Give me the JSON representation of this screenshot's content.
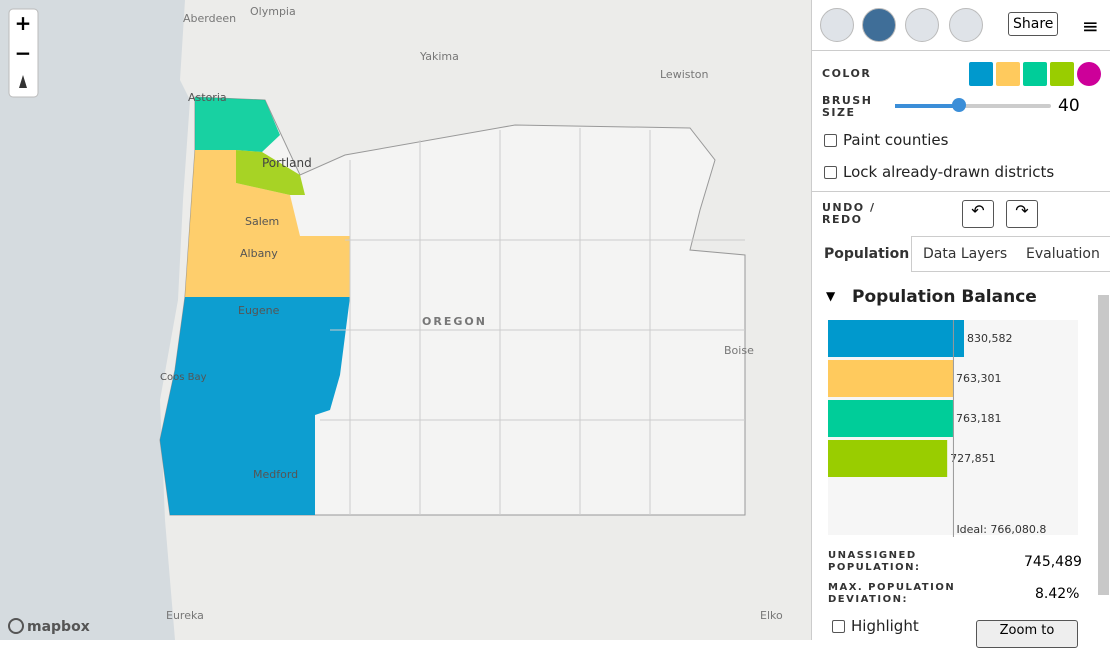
{
  "toolbar": {
    "share": "Share"
  },
  "map": {
    "places": [
      "Aberdeen",
      "Olympia",
      "Yakima",
      "Lewiston",
      "Astoria",
      "Portland",
      "Salem",
      "Albany",
      "Eugene",
      "OREGON",
      "Coos Bay",
      "Medford",
      "Boise",
      "Eureka",
      "Elko"
    ],
    "logo": "mapbox"
  },
  "sidebar": {
    "color": {
      "label": "COLOR",
      "swatches": [
        "#0099cd",
        "#ffca5d",
        "#00cd99",
        "#99cd00",
        "#cd0099"
      ]
    },
    "brush": {
      "label": "BRUSH SIZE",
      "value": 40
    },
    "options": [
      "Paint counties",
      "Lock already-drawn districts"
    ],
    "undo_label": "UNDO / REDO",
    "tabs": [
      "Population",
      "Data Layers",
      "Evaluation"
    ],
    "population": {
      "title": "Population Balance",
      "values": [
        830582,
        763301,
        763181,
        727851
      ],
      "value_labels": [
        "830,582",
        "763,301",
        "763,181",
        "727,851"
      ],
      "colors": [
        "#0099cd",
        "#ffca5d",
        "#00cd99",
        "#99cd00"
      ],
      "ideal": {
        "value": 766080.8,
        "label": "Ideal: 766,080.8"
      }
    },
    "stats": [
      {
        "label": "UNASSIGNED POPULATION:",
        "value": "745,489"
      },
      {
        "label": "MAX. POPULATION DEVIATION:",
        "value": "8.42%"
      }
    ],
    "highlight": "Highlight",
    "zoom": "Zoom to"
  }
}
